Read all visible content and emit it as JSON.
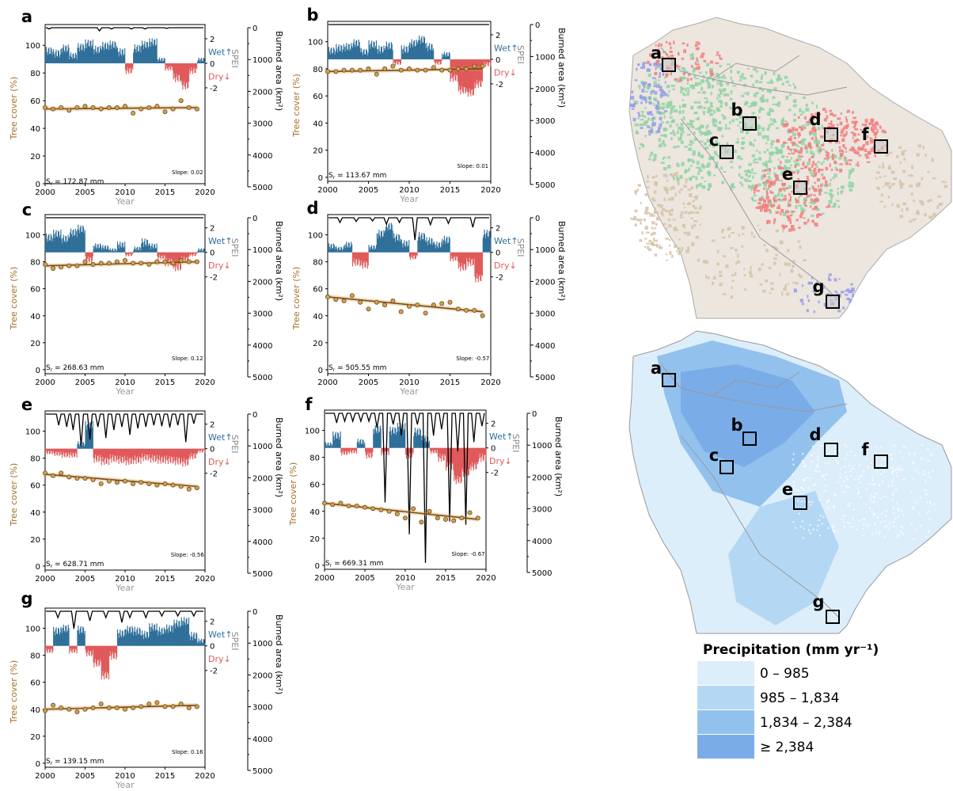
{
  "colors": {
    "wet": "#2f6f99",
    "dry": "#e0595a",
    "tree": "#a5702a",
    "treeFill": "#d4a04d",
    "spei_axis": "#888888",
    "burn": "#000000",
    "precip": [
      "#ddeefb",
      "#b4d8f3",
      "#93c1ee",
      "#7aace8"
    ],
    "map_green": "#8ed4a2",
    "map_red": "#f47c7c",
    "map_blue": "#9999ee",
    "map_tan": "#d7c2a6",
    "map_land": "#ece6df"
  },
  "axis_labels": {
    "tree_cover": "Tree cover (%)",
    "burned_area": "Burned area (km²)",
    "spei": "SPEI",
    "year": "Year",
    "wet": "Wet↑",
    "dry": "Dry↓"
  },
  "legend": {
    "title": "Precipitation (mm yr⁻¹)",
    "classes": [
      "0 – 985",
      "985 – 1,834",
      "1,834 – 2,384",
      "≥ 2,384"
    ]
  },
  "map_site_labels": [
    "a",
    "b",
    "c",
    "d",
    "e",
    "f",
    "g"
  ],
  "chart_data": [
    {
      "id": "a",
      "type": "line",
      "x": [
        2000,
        2001,
        2002,
        2003,
        2004,
        2005,
        2006,
        2007,
        2008,
        2009,
        2010,
        2011,
        2012,
        2013,
        2014,
        2015,
        2016,
        2017,
        2018,
        2019
      ],
      "tree_cover": [
        55,
        54,
        55,
        53,
        55,
        56,
        55,
        54,
        55,
        55,
        56,
        51,
        54,
        55,
        56,
        52,
        54,
        60,
        55,
        54
      ],
      "trend": [
        54,
        55
      ],
      "slope": "Slope: 0.02",
      "sr": "172.87 mm",
      "spei": [
        1.0,
        0.8,
        1.2,
        0.6,
        1.3,
        1.6,
        1.1,
        1.4,
        1.5,
        0.9,
        -0.6,
        1.2,
        1.5,
        1.7,
        0.3,
        -0.4,
        -1.2,
        -1.8,
        -0.6,
        0.3
      ],
      "burned": [
        {
          "year": 2000.5,
          "value": 40
        },
        {
          "year": 2006.8,
          "value": 100
        },
        {
          "year": 2008.3,
          "value": 40
        },
        {
          "year": 2010.8,
          "value": 40
        },
        {
          "year": 2012.5,
          "value": 40
        },
        {
          "year": 2015.2,
          "value": 20
        }
      ],
      "xlim": [
        2000,
        2020
      ],
      "ylim": [
        0,
        115
      ],
      "spei_ticks": [
        "2",
        "0",
        "-2"
      ],
      "yticks": [
        0,
        20,
        40,
        60,
        80,
        100
      ],
      "xticks": [
        2000,
        2005,
        2010,
        2015,
        2020
      ],
      "burned_ticks": [
        0,
        1000,
        2000,
        3000,
        4000,
        5000
      ]
    },
    {
      "id": "b",
      "type": "line",
      "x": [
        2000,
        2001,
        2002,
        2003,
        2004,
        2005,
        2006,
        2007,
        2008,
        2009,
        2010,
        2011,
        2012,
        2013,
        2014,
        2015,
        2016,
        2017,
        2018,
        2019
      ],
      "tree_cover": [
        78,
        78,
        79,
        79,
        79,
        80,
        76,
        80,
        82,
        79,
        80,
        79,
        79,
        81,
        79,
        79,
        80,
        80,
        82,
        82
      ],
      "trend": [
        78,
        80
      ],
      "slope": "Slope: 0.01",
      "sr": "113.67 mm",
      "spei": [
        0.7,
        0.9,
        1.0,
        1.3,
        0.6,
        1.2,
        0.8,
        1.1,
        -0.3,
        0.8,
        1.3,
        1.6,
        1.0,
        -0.3,
        0.4,
        -1.5,
        -2.5,
        -2.7,
        -2.0,
        -0.4
      ],
      "burned": [],
      "xlim": [
        2000,
        2020
      ],
      "ylim": [
        -3,
        115
      ],
      "spei_ticks": [
        "2",
        "0",
        "-2"
      ],
      "yticks": [
        0,
        20,
        40,
        60,
        80,
        100
      ],
      "xticks": [
        2000,
        2005,
        2010,
        2015,
        2020
      ],
      "burned_ticks": [
        0,
        1000,
        2000,
        3000,
        4000,
        5000
      ]
    },
    {
      "id": "c",
      "type": "line",
      "x": [
        2000,
        2001,
        2002,
        2003,
        2004,
        2005,
        2006,
        2007,
        2008,
        2009,
        2010,
        2011,
        2012,
        2013,
        2014,
        2015,
        2016,
        2017,
        2018,
        2019
      ],
      "tree_cover": [
        78,
        75,
        76,
        77,
        77,
        80,
        78,
        79,
        79,
        80,
        81,
        79,
        79,
        78,
        80,
        80,
        79,
        81,
        80,
        80
      ],
      "trend": [
        77,
        80
      ],
      "slope": "Slope: 0.12",
      "sr": "268.63 mm",
      "spei": [
        1.2,
        1.5,
        1.1,
        1.6,
        1.9,
        -0.6,
        0.5,
        0.4,
        0.2,
        0.6,
        -0.2,
        0.3,
        0.8,
        0.5,
        -0.4,
        -0.8,
        -1.2,
        -0.6,
        -0.2,
        0.2
      ],
      "burned": [],
      "xlim": [
        2000,
        2020
      ],
      "ylim": [
        -3,
        115
      ],
      "spei_ticks": [
        "2",
        "0",
        "-2"
      ],
      "yticks": [
        0,
        20,
        40,
        60,
        80,
        100
      ],
      "xticks": [
        2000,
        2005,
        2010,
        2015,
        2020
      ],
      "burned_ticks": [
        0,
        1000,
        2000,
        3000,
        4000,
        5000
      ]
    },
    {
      "id": "d",
      "type": "line",
      "x": [
        2000,
        2001,
        2002,
        2003,
        2004,
        2005,
        2006,
        2007,
        2008,
        2009,
        2010,
        2011,
        2012,
        2013,
        2014,
        2015,
        2016,
        2017,
        2018,
        2019
      ],
      "tree_cover": [
        54,
        52,
        51,
        55,
        50,
        45,
        50,
        48,
        51,
        43,
        47,
        48,
        42,
        48,
        49,
        50,
        45,
        44,
        44,
        40
      ],
      "trend": [
        54,
        43
      ],
      "slope": "Slope: -0.57",
      "sr": "505.55 mm",
      "spei": [
        0.5,
        0.3,
        0.6,
        -0.8,
        -1.0,
        0.4,
        1.5,
        2.1,
        1.2,
        0.7,
        -0.4,
        1.3,
        0.9,
        0.6,
        1.0,
        -0.5,
        -1.2,
        -0.8,
        -2.1,
        1.5
      ],
      "burned": [
        {
          "year": 2001.5,
          "value": 150
        },
        {
          "year": 2003.5,
          "value": 120
        },
        {
          "year": 2005.5,
          "value": 100
        },
        {
          "year": 2007.2,
          "value": 200
        },
        {
          "year": 2008.8,
          "value": 150
        },
        {
          "year": 2010.7,
          "value": 700
        },
        {
          "year": 2012.6,
          "value": 220
        },
        {
          "year": 2014.8,
          "value": 180
        },
        {
          "year": 2017.8,
          "value": 300
        }
      ],
      "xlim": [
        2000,
        2020
      ],
      "ylim": [
        -3,
        115
      ],
      "spei_ticks": [
        "2",
        "0",
        "-2"
      ],
      "yticks": [
        0,
        20,
        40,
        60,
        80,
        100
      ],
      "xticks": [
        2000,
        2005,
        2010,
        2015,
        2020
      ],
      "burned_ticks": [
        0,
        1000,
        2000,
        3000,
        4000,
        5000
      ]
    },
    {
      "id": "e",
      "type": "line",
      "x": [
        2000,
        2001,
        2002,
        2003,
        2004,
        2005,
        2006,
        2007,
        2008,
        2009,
        2010,
        2011,
        2012,
        2013,
        2014,
        2015,
        2016,
        2017,
        2018,
        2019
      ],
      "tree_cover": [
        69,
        67,
        69,
        66,
        65,
        65,
        64,
        61,
        63,
        62,
        63,
        61,
        62,
        61,
        60,
        61,
        60,
        59,
        57,
        58
      ],
      "trend": [
        68,
        59
      ],
      "slope": "Slope: -0.56",
      "sr": "628.71 mm",
      "spei": [
        -0.3,
        -0.4,
        -0.5,
        -0.5,
        0.4,
        1.9,
        -0.8,
        -1.0,
        -0.8,
        -0.9,
        -1.0,
        -0.9,
        -0.7,
        -0.8,
        -0.9,
        -0.9,
        -1.0,
        -1.1,
        -0.6,
        -0.2
      ],
      "burned": [
        {
          "year": 2001.7,
          "value": 350
        },
        {
          "year": 2002.7,
          "value": 400
        },
        {
          "year": 2003.5,
          "value": 500
        },
        {
          "year": 2004.5,
          "value": 1000
        },
        {
          "year": 2005.6,
          "value": 800
        },
        {
          "year": 2006.6,
          "value": 400
        },
        {
          "year": 2007.6,
          "value": 750
        },
        {
          "year": 2008.6,
          "value": 500
        },
        {
          "year": 2009.6,
          "value": 400
        },
        {
          "year": 2010.6,
          "value": 650
        },
        {
          "year": 2011.6,
          "value": 450
        },
        {
          "year": 2012.6,
          "value": 400
        },
        {
          "year": 2013.6,
          "value": 350
        },
        {
          "year": 2014.6,
          "value": 380
        },
        {
          "year": 2015.6,
          "value": 420
        },
        {
          "year": 2016.6,
          "value": 350
        },
        {
          "year": 2017.6,
          "value": 880
        },
        {
          "year": 2018.6,
          "value": 300
        }
      ],
      "xlim": [
        2000,
        2020
      ],
      "ylim": [
        -3,
        115
      ],
      "spei_ticks": [
        "2",
        "0",
        "-2"
      ],
      "yticks": [
        0,
        20,
        40,
        60,
        80,
        100
      ],
      "xticks": [
        2000,
        2005,
        2010,
        2015,
        2020
      ],
      "burned_ticks": [
        0,
        1000,
        2000,
        3000,
        4000,
        5000
      ]
    },
    {
      "id": "f",
      "type": "line",
      "x": [
        2000,
        2001,
        2002,
        2003,
        2004,
        2005,
        2006,
        2007,
        2008,
        2009,
        2010,
        2011,
        2012,
        2013,
        2014,
        2015,
        2016,
        2017,
        2018,
        2019
      ],
      "tree_cover": [
        46,
        45,
        46,
        44,
        44,
        43,
        42,
        41,
        40,
        38,
        35,
        42,
        32,
        40,
        35,
        34,
        33,
        35,
        39,
        35
      ],
      "trend": [
        46,
        34
      ],
      "slope": "Slope: -0.67",
      "sr": "669.31 mm",
      "spei": [
        0.3,
        1.0,
        -0.4,
        -0.3,
        0.5,
        -0.6,
        1.5,
        -0.4,
        1.4,
        1.7,
        -0.6,
        1.3,
        0.7,
        -0.3,
        -0.8,
        -1.5,
        -2.6,
        -2.0,
        -1.5,
        -0.8
      ],
      "burned": [
        {
          "year": 2001.5,
          "value": 300
        },
        {
          "year": 2002.5,
          "value": 250
        },
        {
          "year": 2003.5,
          "value": 250
        },
        {
          "year": 2004.5,
          "value": 250
        },
        {
          "year": 2005.5,
          "value": 250
        },
        {
          "year": 2006.5,
          "value": 450
        },
        {
          "year": 2007.5,
          "value": 2800
        },
        {
          "year": 2008.5,
          "value": 350
        },
        {
          "year": 2009.5,
          "value": 700
        },
        {
          "year": 2010.5,
          "value": 3800
        },
        {
          "year": 2011.5,
          "value": 350
        },
        {
          "year": 2012.5,
          "value": 4700
        },
        {
          "year": 2013.5,
          "value": 700
        },
        {
          "year": 2014.5,
          "value": 500
        },
        {
          "year": 2015.5,
          "value": 3400
        },
        {
          "year": 2016.5,
          "value": 1200
        },
        {
          "year": 2017.5,
          "value": 3500
        },
        {
          "year": 2018.5,
          "value": 900
        },
        {
          "year": 2019.5,
          "value": 400
        }
      ],
      "xlim": [
        2000,
        2020
      ],
      "ylim": [
        -3,
        115
      ],
      "spei_ticks": [
        "2",
        "0",
        "-2"
      ],
      "yticks": [
        0,
        20,
        40,
        60,
        80,
        100
      ],
      "xticks": [
        2000,
        2005,
        2010,
        2015,
        2020
      ],
      "burned_ticks": [
        0,
        1000,
        2000,
        3000,
        4000,
        5000
      ]
    },
    {
      "id": "g",
      "type": "line",
      "x": [
        2000,
        2001,
        2002,
        2003,
        2004,
        2005,
        2006,
        2007,
        2008,
        2009,
        2010,
        2011,
        2012,
        2013,
        2014,
        2015,
        2016,
        2017,
        2018,
        2019
      ],
      "tree_cover": [
        39,
        43,
        41,
        40,
        38,
        40,
        41,
        44,
        41,
        41,
        40,
        41,
        42,
        44,
        45,
        42,
        42,
        44,
        41,
        42
      ],
      "trend": [
        40,
        43
      ],
      "slope": "Slope: 0.16",
      "sr": "139.15 mm",
      "spei": [
        -0.4,
        1.2,
        1.4,
        -0.4,
        1.3,
        -0.6,
        -1.4,
        -2.4,
        -0.8,
        1.0,
        1.3,
        1.2,
        0.9,
        1.5,
        1.2,
        1.4,
        1.8,
        2.0,
        0.8,
        0.4
      ],
      "burned": [
        {
          "year": 2001.6,
          "value": 200
        },
        {
          "year": 2003.6,
          "value": 550
        },
        {
          "year": 2005.6,
          "value": 300
        },
        {
          "year": 2007.6,
          "value": 200
        },
        {
          "year": 2009.6,
          "value": 350
        },
        {
          "year": 2010.6,
          "value": 200
        },
        {
          "year": 2012.6,
          "value": 200
        },
        {
          "year": 2014.6,
          "value": 150
        },
        {
          "year": 2016.6,
          "value": 150
        },
        {
          "year": 2018.6,
          "value": 150
        }
      ],
      "xlim": [
        2000,
        2020
      ],
      "ylim": [
        -3,
        115
      ],
      "spei_ticks": [
        "2",
        "0",
        "-2"
      ],
      "yticks": [
        0,
        20,
        40,
        60,
        80,
        100
      ],
      "xticks": [
        2000,
        2005,
        2010,
        2015,
        2020
      ],
      "burned_ticks": [
        0,
        1000,
        2000,
        3000,
        4000,
        5000
      ]
    }
  ]
}
